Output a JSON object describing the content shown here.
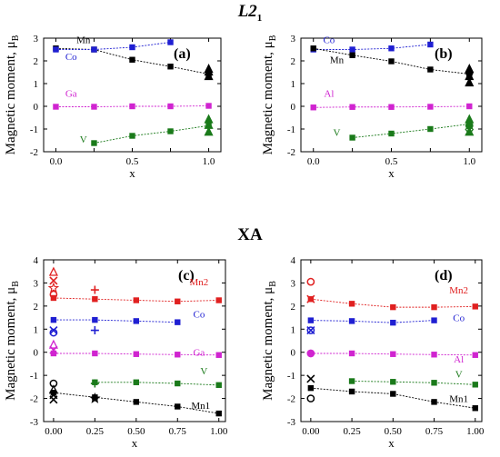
{
  "figure": {
    "top_title": "L2",
    "top_title_sub": "1",
    "bottom_title": "XA"
  },
  "chart_data": [
    {
      "type": "line",
      "panel_label": "(a)",
      "xlabel": "x",
      "ylabel": "Magnetic moment, μ",
      "ylabel_sub": "B",
      "xlim": [
        -0.08,
        1.08
      ],
      "ylim": [
        -2,
        3
      ],
      "xticks": [
        0.0,
        0.25,
        0.5,
        0.75,
        1.0
      ],
      "xtick_labels": [
        "0.0",
        "0.5",
        "1.0"
      ],
      "xtick_label_values": [
        0.0,
        0.5,
        1.0
      ],
      "yticks": [
        -2,
        -1,
        0,
        1,
        2,
        3
      ],
      "ytick_labels": [
        "-2",
        "-1",
        "0",
        "1",
        "2",
        "3"
      ],
      "series": [
        {
          "name": "Mn",
          "color": "#000000",
          "x": [
            0.0,
            0.25,
            0.5,
            0.75,
            1.0
          ],
          "values": [
            2.55,
            2.5,
            2.05,
            1.75,
            1.42
          ],
          "label_pos": [
            0.18,
            2.78
          ]
        },
        {
          "name": "Co",
          "color": "#1f1fd2",
          "x": [
            0.0,
            0.25,
            0.5,
            0.75
          ],
          "values": [
            2.5,
            2.5,
            2.6,
            2.82
          ],
          "label_pos": [
            0.1,
            2.05
          ]
        },
        {
          "name": "Ga",
          "color": "#d024d0",
          "x": [
            0.0,
            0.25,
            0.5,
            0.75,
            1.0
          ],
          "values": [
            -0.02,
            -0.02,
            0.0,
            0.0,
            0.02
          ],
          "label_pos": [
            0.1,
            0.42
          ]
        },
        {
          "name": "V",
          "color": "#1a7a1a",
          "x": [
            0.25,
            0.5,
            0.75,
            1.0
          ],
          "values": [
            -1.62,
            -1.3,
            -1.1,
            -0.85
          ],
          "label_pos": [
            0.18,
            -1.6
          ]
        }
      ],
      "markers": [
        {
          "x": 1.0,
          "y": 1.62,
          "shape": "triangle-filled",
          "color": "#000000"
        },
        {
          "x": 1.0,
          "y": 1.5,
          "shape": "triangle-filled",
          "color": "#000000"
        },
        {
          "x": 1.0,
          "y": 1.3,
          "shape": "triangle-filled",
          "color": "#000000"
        },
        {
          "x": 1.0,
          "y": -0.6,
          "shape": "triangle-filled",
          "color": "#1a7a1a"
        },
        {
          "x": 1.0,
          "y": -0.85,
          "shape": "triangle-filled",
          "color": "#1a7a1a"
        },
        {
          "x": 1.0,
          "y": -1.15,
          "shape": "triangle-filled",
          "color": "#1a7a1a"
        }
      ]
    },
    {
      "type": "line",
      "panel_label": "(b)",
      "xlabel": "x",
      "ylabel": "Magnetic moment, μ",
      "ylabel_sub": "B",
      "xlim": [
        -0.08,
        1.08
      ],
      "ylim": [
        -2,
        3
      ],
      "xticks": [
        0.0,
        0.25,
        0.5,
        0.75,
        1.0
      ],
      "xtick_labels": [
        "0.0",
        "0.5",
        "1.0"
      ],
      "xtick_label_values": [
        0.0,
        0.5,
        1.0
      ],
      "yticks": [
        -2,
        -1,
        0,
        1,
        2,
        3
      ],
      "ytick_labels": [
        "-2",
        "-1",
        "0",
        "1",
        "2",
        "3"
      ],
      "series": [
        {
          "name": "Co",
          "color": "#1f1fd2",
          "x": [
            0.0,
            0.25,
            0.5,
            0.75
          ],
          "values": [
            2.5,
            2.5,
            2.55,
            2.72
          ],
          "label_pos": [
            0.1,
            2.78
          ]
        },
        {
          "name": "Mn",
          "color": "#000000",
          "x": [
            0.0,
            0.25,
            0.5,
            0.75,
            1.0
          ],
          "values": [
            2.55,
            2.25,
            1.98,
            1.62,
            1.42
          ],
          "label_pos": [
            0.15,
            1.9
          ]
        },
        {
          "name": "Al",
          "color": "#d024d0",
          "x": [
            0.0,
            0.25,
            0.5,
            0.75,
            1.0
          ],
          "values": [
            -0.05,
            -0.03,
            -0.03,
            -0.02,
            0.0
          ],
          "label_pos": [
            0.1,
            0.42
          ]
        },
        {
          "name": "V",
          "color": "#1a7a1a",
          "x": [
            0.25,
            0.5,
            0.75,
            1.0
          ],
          "values": [
            -1.38,
            -1.2,
            -1.0,
            -0.78
          ],
          "label_pos": [
            0.15,
            -1.3
          ]
        }
      ],
      "markers": [
        {
          "x": 1.0,
          "y": 1.62,
          "shape": "triangle-filled",
          "color": "#000000"
        },
        {
          "x": 1.0,
          "y": 1.48,
          "shape": "circle-filled",
          "color": "#000000"
        },
        {
          "x": 1.0,
          "y": 1.3,
          "shape": "triangle-filled",
          "color": "#000000"
        },
        {
          "x": 1.0,
          "y": 1.02,
          "shape": "triangle-filled",
          "color": "#000000"
        },
        {
          "x": 1.0,
          "y": -0.6,
          "shape": "triangle-filled",
          "color": "#1a7a1a"
        },
        {
          "x": 1.0,
          "y": -0.85,
          "shape": "circle-filled",
          "color": "#1a7a1a"
        },
        {
          "x": 1.0,
          "y": -1.02,
          "shape": "diamond-open",
          "color": "#1a7a1a"
        },
        {
          "x": 1.0,
          "y": -1.15,
          "shape": "triangle-filled",
          "color": "#1a7a1a"
        }
      ]
    },
    {
      "type": "line",
      "panel_label": "(c)",
      "xlabel": "x",
      "ylabel": "Magnetic moment, μ",
      "ylabel_sub": "B",
      "xlim": [
        -0.06,
        1.04
      ],
      "ylim": [
        -3,
        4
      ],
      "xticks": [
        0.0,
        0.25,
        0.5,
        0.75,
        1.0
      ],
      "xtick_labels": [
        "0.00",
        "0.25",
        "0.50",
        "0.75",
        "1.00"
      ],
      "xtick_label_values": [
        0.0,
        0.25,
        0.5,
        0.75,
        1.0
      ],
      "yticks": [
        -3,
        -2,
        -1,
        0,
        1,
        2,
        3,
        4
      ],
      "ytick_labels": [
        "-3",
        "-2",
        "-1",
        "0",
        "1",
        "2",
        "3",
        "4"
      ],
      "series": [
        {
          "name": "Mn2",
          "color": "#e02020",
          "x": [
            0.0,
            0.25,
            0.5,
            0.75,
            1.0
          ],
          "values": [
            2.35,
            2.3,
            2.25,
            2.2,
            2.25
          ],
          "label_pos": [
            0.88,
            2.9
          ]
        },
        {
          "name": "Co",
          "color": "#1f1fd2",
          "x": [
            0.0,
            0.25,
            0.5,
            0.75
          ],
          "values": [
            1.4,
            1.4,
            1.35,
            1.3
          ],
          "label_pos": [
            0.88,
            1.5
          ]
        },
        {
          "name": "Ga",
          "color": "#d024d0",
          "x": [
            0.0,
            0.25,
            0.5,
            0.75,
            1.0
          ],
          "values": [
            -0.05,
            -0.05,
            -0.08,
            -0.1,
            -0.12
          ],
          "label_pos": [
            0.88,
            -0.15
          ]
        },
        {
          "name": "V",
          "color": "#1a7a1a",
          "x": [
            0.25,
            0.5,
            0.75,
            1.0
          ],
          "values": [
            -1.3,
            -1.3,
            -1.35,
            -1.42
          ],
          "label_pos": [
            0.91,
            -0.95
          ]
        },
        {
          "name": "Mn1",
          "color": "#000000",
          "x": [
            0.0,
            0.25,
            0.5,
            0.75,
            1.0
          ],
          "values": [
            -1.75,
            -1.95,
            -2.15,
            -2.35,
            -2.65
          ],
          "label_pos": [
            0.89,
            -2.45
          ]
        }
      ],
      "markers": [
        {
          "x": 0.0,
          "y": 3.45,
          "shape": "triangle-open",
          "color": "#e02020"
        },
        {
          "x": 0.0,
          "y": 3.1,
          "shape": "x",
          "color": "#e02020"
        },
        {
          "x": 0.0,
          "y": 2.78,
          "shape": "star-open",
          "color": "#e02020"
        },
        {
          "x": 0.0,
          "y": 2.5,
          "shape": "circle-open",
          "color": "#e02020"
        },
        {
          "x": 0.25,
          "y": 2.7,
          "shape": "plus",
          "color": "#e02020"
        },
        {
          "x": 0.0,
          "y": 0.95,
          "shape": "x",
          "color": "#1f1fd2"
        },
        {
          "x": 0.0,
          "y": 0.85,
          "shape": "circle-open",
          "color": "#1f1fd2"
        },
        {
          "x": 0.25,
          "y": 0.95,
          "shape": "plus",
          "color": "#1f1fd2"
        },
        {
          "x": 0.0,
          "y": 0.3,
          "shape": "triangle-open",
          "color": "#d024d0"
        },
        {
          "x": 0.0,
          "y": 0.1,
          "shape": "x",
          "color": "#d024d0"
        },
        {
          "x": 0.0,
          "y": -1.35,
          "shape": "circle-open",
          "color": "#000000"
        },
        {
          "x": 0.0,
          "y": -1.65,
          "shape": "triangle-open",
          "color": "#000000"
        },
        {
          "x": 0.0,
          "y": -1.85,
          "shape": "x",
          "color": "#000000"
        },
        {
          "x": 0.0,
          "y": -2.05,
          "shape": "x",
          "color": "#000000"
        },
        {
          "x": 0.25,
          "y": -1.35,
          "shape": "plus",
          "color": "#1a7a1a"
        },
        {
          "x": 0.25,
          "y": -2.0,
          "shape": "star-filled",
          "color": "#000000"
        }
      ]
    },
    {
      "type": "line",
      "panel_label": "(d)",
      "xlabel": "x",
      "ylabel": "Magnetic moment, μ",
      "ylabel_sub": "B",
      "xlim": [
        -0.06,
        1.04
      ],
      "ylim": [
        -3,
        4
      ],
      "xticks": [
        0.0,
        0.25,
        0.5,
        0.75,
        1.0
      ],
      "xtick_labels": [
        "0.00",
        "0.25",
        "0.50",
        "0.75",
        "1.00"
      ],
      "xtick_label_values": [
        0.0,
        0.25,
        0.5,
        0.75,
        1.0
      ],
      "yticks": [
        -3,
        -2,
        -1,
        0,
        1,
        2,
        3,
        4
      ],
      "ytick_labels": [
        "-3",
        "-2",
        "-1",
        "0",
        "1",
        "2",
        "3",
        "4"
      ],
      "series": [
        {
          "name": "Mn2",
          "color": "#e02020",
          "x": [
            0.0,
            0.25,
            0.5,
            0.75,
            1.0
          ],
          "values": [
            2.3,
            2.1,
            1.95,
            1.95,
            1.98
          ],
          "label_pos": [
            0.9,
            2.55
          ]
        },
        {
          "name": "Co",
          "color": "#1f1fd2",
          "x": [
            0.0,
            0.25,
            0.5,
            0.75
          ],
          "values": [
            1.38,
            1.35,
            1.28,
            1.38
          ],
          "label_pos": [
            0.9,
            1.35
          ]
        },
        {
          "name": "Al",
          "color": "#d024d0",
          "x": [
            0.0,
            0.25,
            0.5,
            0.75,
            1.0
          ],
          "values": [
            -0.05,
            -0.05,
            -0.08,
            -0.1,
            -0.12
          ],
          "label_pos": [
            0.9,
            -0.45
          ]
        },
        {
          "name": "V",
          "color": "#1a7a1a",
          "x": [
            0.25,
            0.5,
            0.75,
            1.0
          ],
          "values": [
            -1.25,
            -1.28,
            -1.32,
            -1.4
          ],
          "label_pos": [
            0.9,
            -1.1
          ]
        },
        {
          "name": "Mn1",
          "color": "#000000",
          "x": [
            0.0,
            0.25,
            0.5,
            0.75,
            1.0
          ],
          "values": [
            -1.55,
            -1.7,
            -1.8,
            -2.15,
            -2.42
          ],
          "label_pos": [
            0.9,
            -2.15
          ]
        }
      ],
      "markers": [
        {
          "x": 0.0,
          "y": 3.05,
          "shape": "circle-open",
          "color": "#e02020"
        },
        {
          "x": 0.0,
          "y": 2.3,
          "shape": "x",
          "color": "#e02020"
        },
        {
          "x": 0.0,
          "y": 0.95,
          "shape": "circle-open",
          "color": "#1f1fd2"
        },
        {
          "x": 0.0,
          "y": 0.95,
          "shape": "x",
          "color": "#1f1fd2"
        },
        {
          "x": 0.0,
          "y": -0.05,
          "shape": "circle-open",
          "color": "#d024d0"
        },
        {
          "x": 0.0,
          "y": -1.15,
          "shape": "x",
          "color": "#000000"
        },
        {
          "x": 0.0,
          "y": -2.0,
          "shape": "circle-open",
          "color": "#000000"
        }
      ]
    }
  ]
}
